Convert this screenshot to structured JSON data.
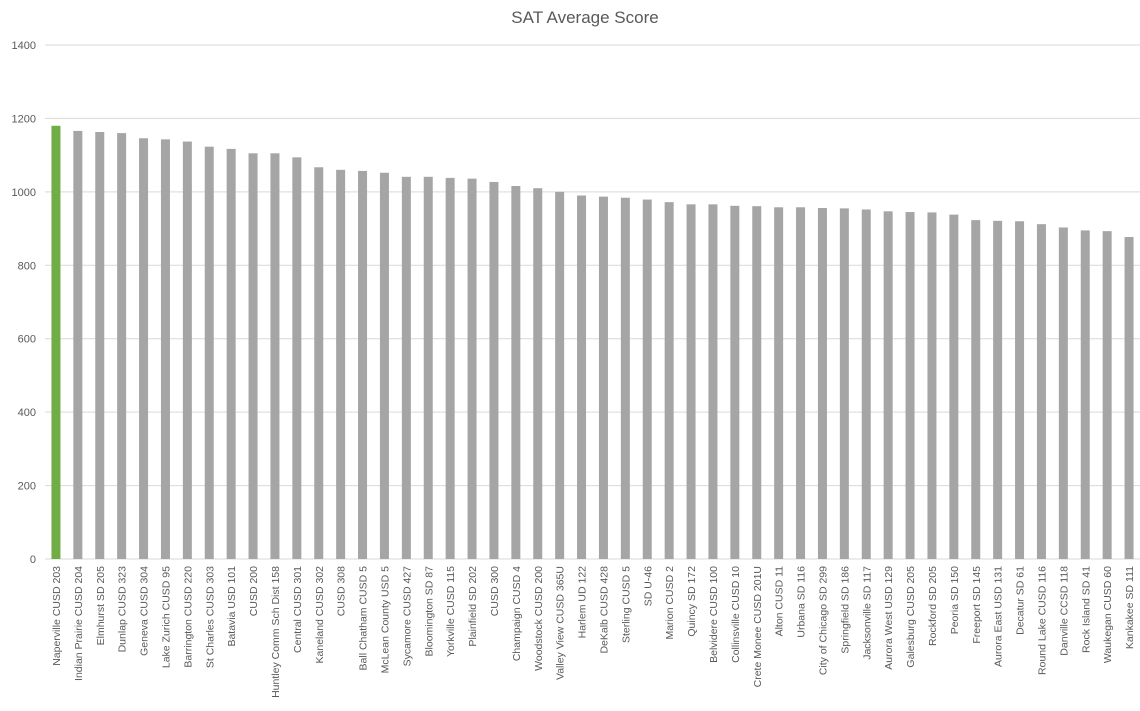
{
  "chart_data": {
    "type": "bar",
    "title": "SAT Average Score",
    "xlabel": "",
    "ylabel": "",
    "ylim": [
      0,
      1400
    ],
    "yticks": [
      0,
      200,
      400,
      600,
      800,
      1000,
      1200,
      1400
    ],
    "grid": true,
    "legend": "none",
    "categories": [
      "Naperville CUSD 203",
      "Indian Prairie CUSD 204",
      "Elmhurst SD 205",
      "Dunlap CUSD 323",
      "Geneva CUSD 304",
      "Lake Zurich CUSD 95",
      "Barrington CUSD 220",
      "St Charles CUSD 303",
      "Batavia USD 101",
      "CUSD 200",
      "Huntley Comm Sch Dist 158",
      "Central CUSD 301",
      "Kaneland CUSD 302",
      "CUSD 308",
      "Ball Chatham CUSD 5",
      "McLean County USD 5",
      "Sycamore CUSD 427",
      "Bloomington SD 87",
      "Yorkville CUSD 115",
      "Plainfield SD 202",
      "CUSD 300",
      "Champaign CUSD 4",
      "Woodstock CUSD 200",
      "Valley View CUSD 365U",
      "Harlem UD 122",
      "DeKalb CUSD 428",
      "Sterling CUSD 5",
      "SD U-46",
      "Marion CUSD 2",
      "Quincy SD 172",
      "Belvidere CUSD 100",
      "Collinsville CUSD 10",
      "Crete Monee CUSD 201U",
      "Alton CUSD 11",
      "Urbana SD 116",
      "City of Chicago SD 299",
      "Springfield SD 186",
      "Jacksonville SD 117",
      "Aurora West USD 129",
      "Galesburg CUSD 205",
      "Rockford SD 205",
      "Peoria SD 150",
      "Freeport SD 145",
      "Aurora East USD 131",
      "Decatur SD 61",
      "Round Lake CUSD 116",
      "Danville CCSD 118",
      "Rock Island SD 41",
      "Waukegan CUSD 60",
      "Kankakee SD 111"
    ],
    "values": [
      1180,
      1166,
      1163,
      1160,
      1146,
      1143,
      1137,
      1123,
      1117,
      1105,
      1105,
      1094,
      1067,
      1060,
      1057,
      1052,
      1041,
      1041,
      1038,
      1036,
      1027,
      1016,
      1010,
      1000,
      990,
      987,
      984,
      979,
      972,
      966,
      966,
      962,
      961,
      958,
      958,
      956,
      955,
      952,
      947,
      945,
      944,
      938,
      923,
      921,
      920,
      912,
      903,
      895,
      893,
      877
    ],
    "colors": {
      "highlight": "#70ad47",
      "bar": "#a5a5a5",
      "grid": "#d9d9d9",
      "text": "#595959"
    },
    "highlight_index": 0
  }
}
